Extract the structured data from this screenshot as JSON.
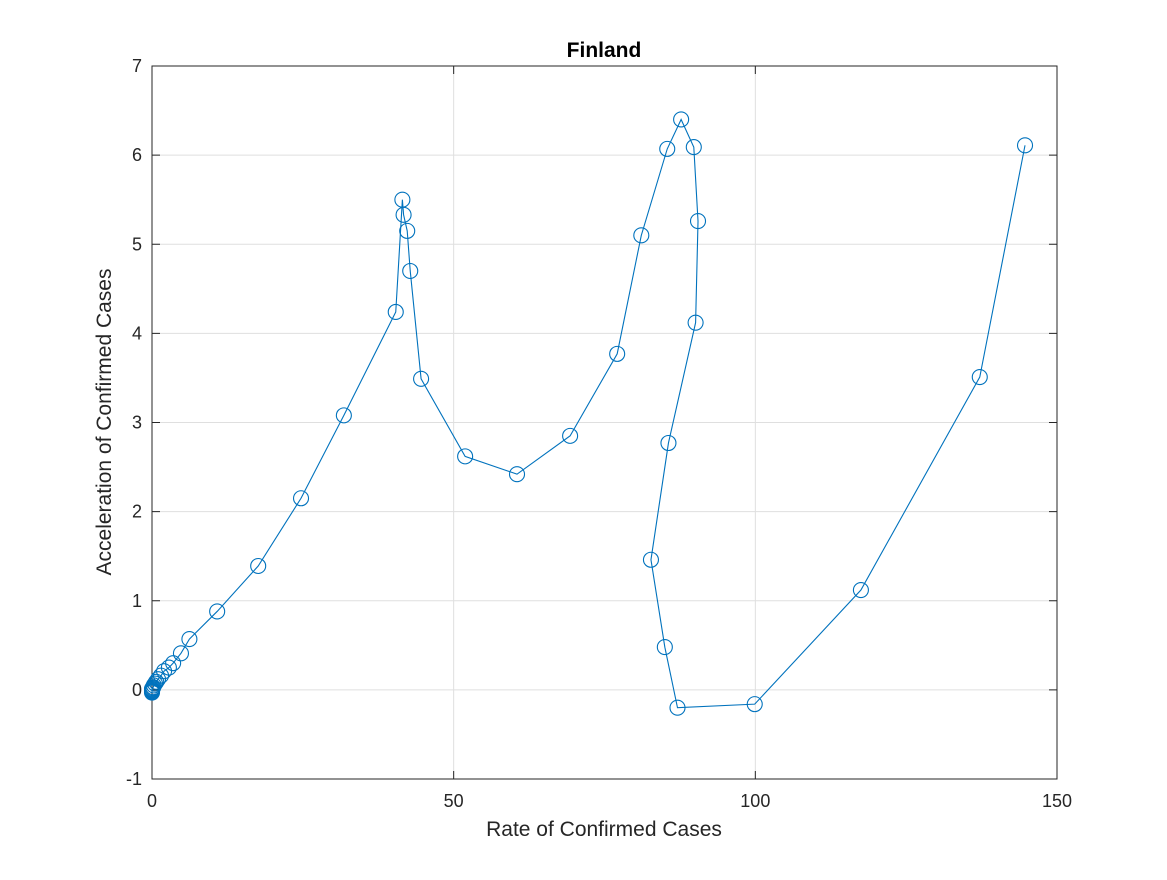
{
  "chart_data": {
    "type": "line",
    "title": "Finland",
    "xlabel": "Rate of Confirmed Cases",
    "ylabel": "Acceleration of Confirmed Cases",
    "xlim": [
      0,
      150
    ],
    "ylim": [
      -1,
      7
    ],
    "xticks": [
      "0",
      "50",
      "100",
      "150"
    ],
    "yticks": [
      "-1",
      "0",
      "1",
      "2",
      "3",
      "4",
      "5",
      "6",
      "7"
    ],
    "grid": true,
    "marker": "circle",
    "line_color": "#0072BD",
    "series": [
      {
        "x": [
          0,
          0,
          0,
          0,
          0,
          0.1,
          0.2,
          0.3,
          0.5,
          0.7,
          1.0,
          1.5,
          2.0,
          2.8,
          3.5,
          4.8,
          6.2,
          10.8,
          17.6,
          24.7,
          31.8,
          40.4,
          41.5,
          41.7,
          42.3,
          42.8,
          44.6,
          51.9,
          60.5,
          69.3,
          77.1,
          81.1,
          85.4,
          87.7,
          89.8,
          90.5,
          90.1,
          85.6,
          82.7,
          85.0,
          87.1,
          99.9,
          117.5,
          137.2,
          144.7
        ],
        "y": [
          -0.03,
          -0.02,
          -0.01,
          0,
          0.01,
          0.02,
          0.03,
          0.05,
          0.07,
          0.09,
          0.12,
          0.16,
          0.21,
          0.25,
          0.3,
          0.41,
          0.57,
          0.88,
          1.39,
          2.15,
          3.08,
          4.24,
          5.5,
          5.33,
          5.15,
          4.7,
          3.49,
          2.62,
          2.42,
          2.85,
          3.77,
          5.1,
          6.07,
          6.4,
          6.09,
          5.26,
          4.12,
          2.77,
          1.46,
          0.48,
          -0.2,
          -0.16,
          1.12,
          3.51,
          6.11
        ]
      }
    ]
  }
}
